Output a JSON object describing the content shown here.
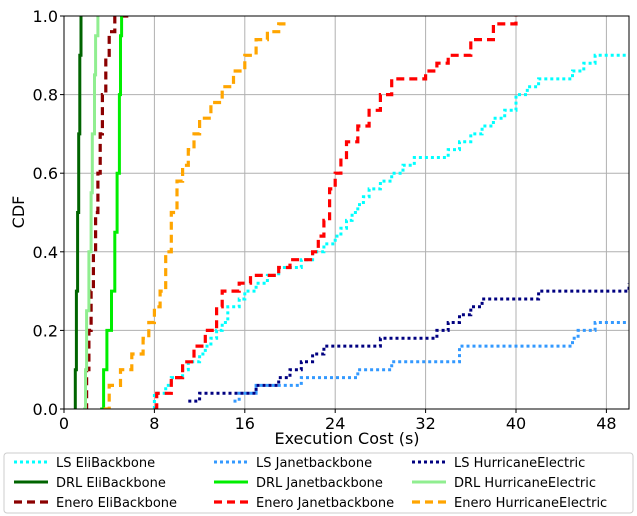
{
  "chart_data": {
    "type": "line",
    "xlabel": "Execution Cost (s)",
    "ylabel": "CDF",
    "xlim": [
      0,
      50
    ],
    "ylim": [
      0,
      1.0
    ],
    "x_ticks": [
      "0",
      "8",
      "16",
      "24",
      "32",
      "40",
      "48"
    ],
    "y_ticks": [
      "0.0",
      "0.2",
      "0.4",
      "0.6",
      "0.8",
      "1.0"
    ],
    "grid": true,
    "legend_position": "bottom",
    "series": [
      {
        "name": "LS EliBackbone",
        "color": "#00ffff",
        "dash": "dotted",
        "points": [
          [
            8,
            0
          ],
          [
            8,
            0.04
          ],
          [
            9,
            0.06
          ],
          [
            9.5,
            0.08
          ],
          [
            10.5,
            0.1
          ],
          [
            11,
            0.12
          ],
          [
            12,
            0.14
          ],
          [
            12.5,
            0.16
          ],
          [
            13,
            0.18
          ],
          [
            13.5,
            0.2
          ],
          [
            14,
            0.22
          ],
          [
            14.5,
            0.26
          ],
          [
            15.5,
            0.28
          ],
          [
            16,
            0.3
          ],
          [
            17,
            0.32
          ],
          [
            18,
            0.34
          ],
          [
            19,
            0.36
          ],
          [
            21,
            0.38
          ],
          [
            22,
            0.4
          ],
          [
            23,
            0.42
          ],
          [
            24,
            0.44
          ],
          [
            24.5,
            0.46
          ],
          [
            25,
            0.48
          ],
          [
            25.5,
            0.5
          ],
          [
            26,
            0.52
          ],
          [
            26.5,
            0.54
          ],
          [
            27,
            0.56
          ],
          [
            28,
            0.58
          ],
          [
            29,
            0.6
          ],
          [
            30,
            0.62
          ],
          [
            31,
            0.64
          ],
          [
            33,
            0.64
          ],
          [
            34,
            0.66
          ],
          [
            35,
            0.68
          ],
          [
            36,
            0.7
          ],
          [
            37,
            0.72
          ],
          [
            38,
            0.74
          ],
          [
            39,
            0.76
          ],
          [
            40,
            0.8
          ],
          [
            41,
            0.82
          ],
          [
            42,
            0.84
          ],
          [
            45,
            0.86
          ],
          [
            46,
            0.88
          ],
          [
            47,
            0.9
          ],
          [
            50,
            0.9
          ]
        ]
      },
      {
        "name": "DRL EliBackbone",
        "color": "#006400",
        "dash": "solid",
        "points": [
          [
            0.9,
            0
          ],
          [
            1,
            0.1
          ],
          [
            1.1,
            0.3
          ],
          [
            1.2,
            0.5
          ],
          [
            1.3,
            0.7
          ],
          [
            1.4,
            0.9
          ],
          [
            1.5,
            1.0
          ]
        ]
      },
      {
        "name": "Enero EliBackbone",
        "color": "#8b0000",
        "dash": "dashed",
        "points": [
          [
            1.8,
            0
          ],
          [
            2,
            0.1
          ],
          [
            2.2,
            0.2
          ],
          [
            2.4,
            0.3
          ],
          [
            2.6,
            0.4
          ],
          [
            2.8,
            0.5
          ],
          [
            3,
            0.6
          ],
          [
            3.2,
            0.7
          ],
          [
            3.4,
            0.8
          ],
          [
            3.7,
            0.9
          ],
          [
            4,
            0.96
          ],
          [
            4.5,
            1.0
          ],
          [
            5.7,
            1.0
          ]
        ]
      },
      {
        "name": "LS Janetbackbone",
        "color": "#3399ff",
        "dash": "dotted",
        "points": [
          [
            15,
            0.02
          ],
          [
            15.5,
            0.04
          ],
          [
            17,
            0.06
          ],
          [
            21,
            0.08
          ],
          [
            26,
            0.1
          ],
          [
            29,
            0.12
          ],
          [
            35,
            0.16
          ],
          [
            45,
            0.18
          ],
          [
            45.5,
            0.2
          ],
          [
            47,
            0.22
          ],
          [
            50,
            0.22
          ]
        ]
      },
      {
        "name": "DRL Janetbackbone",
        "color": "#00ee00",
        "dash": "solid",
        "points": [
          [
            3.2,
            0
          ],
          [
            3.5,
            0.1
          ],
          [
            3.8,
            0.2
          ],
          [
            4.2,
            0.3
          ],
          [
            4.5,
            0.45
          ],
          [
            4.7,
            0.6
          ],
          [
            4.9,
            0.8
          ],
          [
            5,
            0.95
          ],
          [
            5.1,
            1.0
          ]
        ]
      },
      {
        "name": "Enero Janetbackbone",
        "color": "#ff0000",
        "dash": "dashed",
        "points": [
          [
            8,
            0
          ],
          [
            8.2,
            0.04
          ],
          [
            9.5,
            0.08
          ],
          [
            10.5,
            0.12
          ],
          [
            11.5,
            0.16
          ],
          [
            12.5,
            0.2
          ],
          [
            13.5,
            0.26
          ],
          [
            14,
            0.3
          ],
          [
            15.5,
            0.32
          ],
          [
            16.5,
            0.34
          ],
          [
            19,
            0.36
          ],
          [
            20,
            0.38
          ],
          [
            22,
            0.4
          ],
          [
            22.5,
            0.44
          ],
          [
            23,
            0.48
          ],
          [
            23.5,
            0.56
          ],
          [
            24,
            0.6
          ],
          [
            24.5,
            0.64
          ],
          [
            25,
            0.68
          ],
          [
            26,
            0.72
          ],
          [
            27,
            0.76
          ],
          [
            28,
            0.8
          ],
          [
            29,
            0.84
          ],
          [
            31,
            0.84
          ],
          [
            32,
            0.86
          ],
          [
            33,
            0.88
          ],
          [
            34,
            0.9
          ],
          [
            36,
            0.94
          ],
          [
            38,
            0.98
          ],
          [
            40,
            1.0
          ]
        ]
      },
      {
        "name": "LS HurricaneElectric",
        "color": "#000080",
        "dash": "dotted",
        "points": [
          [
            11,
            0.02
          ],
          [
            12,
            0.04
          ],
          [
            17,
            0.06
          ],
          [
            19,
            0.08
          ],
          [
            20,
            0.1
          ],
          [
            21,
            0.12
          ],
          [
            22,
            0.14
          ],
          [
            23,
            0.16
          ],
          [
            28,
            0.18
          ],
          [
            33,
            0.2
          ],
          [
            34,
            0.22
          ],
          [
            35,
            0.24
          ],
          [
            36,
            0.26
          ],
          [
            37,
            0.28
          ],
          [
            40,
            0.28
          ],
          [
            42,
            0.3
          ],
          [
            48,
            0.3
          ],
          [
            50,
            0.32
          ]
        ]
      },
      {
        "name": "DRL HurricaneElectric",
        "color": "#90ee90",
        "dash": "solid",
        "points": [
          [
            1.7,
            0
          ],
          [
            1.9,
            0.1
          ],
          [
            2,
            0.25
          ],
          [
            2.2,
            0.4
          ],
          [
            2.4,
            0.55
          ],
          [
            2.5,
            0.7
          ],
          [
            2.7,
            0.85
          ],
          [
            2.8,
            0.95
          ],
          [
            3,
            1.0
          ]
        ]
      },
      {
        "name": "Enero HurricaneElectric",
        "color": "#ffa500",
        "dash": "dashed",
        "points": [
          [
            3.5,
            0
          ],
          [
            4,
            0.06
          ],
          [
            5,
            0.1
          ],
          [
            6,
            0.14
          ],
          [
            7,
            0.18
          ],
          [
            7.5,
            0.22
          ],
          [
            8,
            0.26
          ],
          [
            8.5,
            0.3
          ],
          [
            9,
            0.4
          ],
          [
            9.5,
            0.5
          ],
          [
            10,
            0.58
          ],
          [
            10.5,
            0.62
          ],
          [
            11,
            0.66
          ],
          [
            11.5,
            0.7
          ],
          [
            12,
            0.74
          ],
          [
            13,
            0.78
          ],
          [
            14,
            0.82
          ],
          [
            15,
            0.86
          ],
          [
            16,
            0.9
          ],
          [
            17,
            0.94
          ],
          [
            18,
            0.96
          ],
          [
            19,
            0.98
          ],
          [
            20,
            0.98
          ]
        ]
      }
    ]
  }
}
